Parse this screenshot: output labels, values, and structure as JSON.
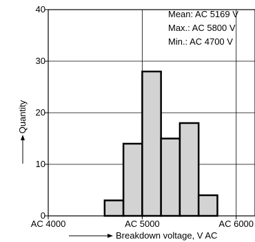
{
  "chart_data": {
    "type": "bar",
    "bin_edges": [
      4000,
      4200,
      4400,
      4600,
      4800,
      5000,
      5200,
      5400,
      5600,
      5800,
      6000,
      6200
    ],
    "values": [
      0,
      0,
      0,
      3,
      14,
      28,
      15,
      18,
      4,
      0,
      0
    ],
    "xlabel": "Breakdown voltage, V AC",
    "ylabel": "Quantity",
    "xlim": [
      4000,
      6200
    ],
    "ylim": [
      0,
      40
    ],
    "x_ticks": [
      {
        "value": 4000,
        "label": "AC 4000"
      },
      {
        "value": 5000,
        "label": "AC 5000"
      },
      {
        "value": 6000,
        "label": "AC 6000"
      }
    ],
    "y_ticks": [
      {
        "value": 0,
        "label": "0"
      },
      {
        "value": 10,
        "label": "10"
      },
      {
        "value": 20,
        "label": "20"
      },
      {
        "value": 30,
        "label": "30"
      },
      {
        "value": 40,
        "label": "40"
      }
    ],
    "grid": true,
    "bar_fill": "#d3d3d3",
    "annotations": {
      "mean": "Mean: AC 5169 V",
      "max": "Max.: AC 5800 V",
      "min": "Min.: AC 4700 V"
    }
  }
}
